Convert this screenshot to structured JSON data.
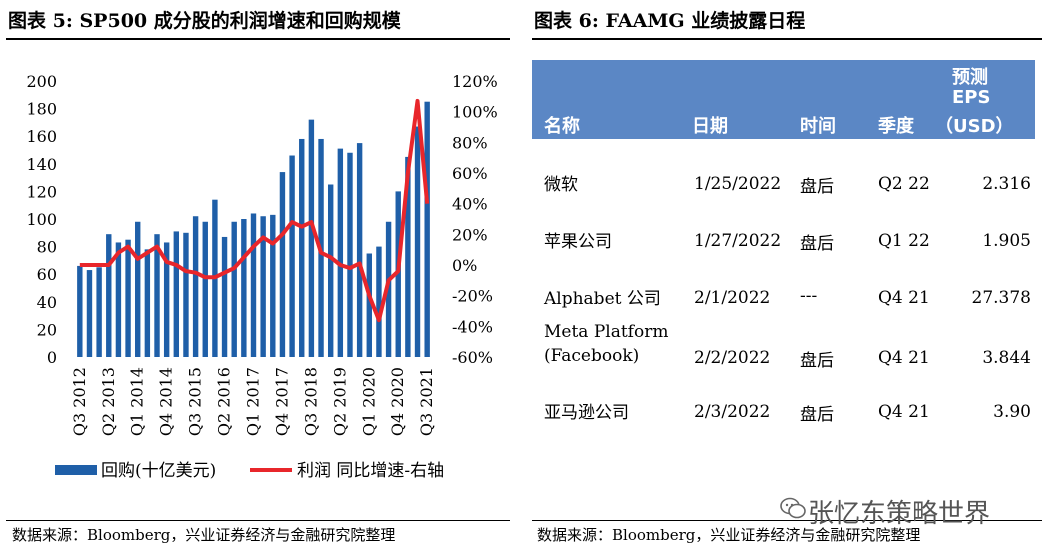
{
  "left_title": "图表 5:  SP500 成分股的利润增速和回购规模",
  "right_title": "图表 6:  FAAMG 业绩披露日程",
  "left_source": "数据来源：Bloomberg，兴业证券经济与金融研究院整理",
  "right_source": "数据来源：Bloomberg，兴业证券经济与金融研究院整理",
  "watermark": "张忆东策略世界",
  "colors": {
    "bar": "#1f5fa8",
    "line": "#e8262b",
    "table_header": "#5b87c5"
  },
  "chart_data": {
    "type": "bar+line",
    "title": "",
    "x": [
      "Q3 2012",
      "Q4 2012",
      "Q1 2013",
      "Q2 2013",
      "Q3 2013",
      "Q4 2013",
      "Q1 2014",
      "Q2 2014",
      "Q3 2014",
      "Q4 2014",
      "Q1 2015",
      "Q2 2015",
      "Q3 2015",
      "Q4 2015",
      "Q1 2016",
      "Q2 2016",
      "Q3 2016",
      "Q4 2016",
      "Q1 2017",
      "Q2 2017",
      "Q3 2017",
      "Q4 2017",
      "Q1 2018",
      "Q2 2018",
      "Q3 2018",
      "Q4 2018",
      "Q1 2019",
      "Q2 2019",
      "Q3 2019",
      "Q4 2019",
      "Q1 2020",
      "Q2 2020",
      "Q3 2020",
      "Q4 2020",
      "Q1 2021",
      "Q2 2021",
      "Q3 2021"
    ],
    "x_tick_labels": [
      "Q3 2012",
      "Q2 2013",
      "Q1 2014",
      "Q4 2014",
      "Q3 2015",
      "Q2 2016",
      "Q1 2017",
      "Q4 2017",
      "Q3 2018",
      "Q2 2019",
      "Q1 2020",
      "Q4 2020",
      "Q3 2021"
    ],
    "series": [
      {
        "name": "回购(十亿美元)",
        "type": "bar",
        "axis": "left",
        "values": [
          66,
          63,
          65,
          89,
          83,
          85,
          98,
          78,
          89,
          83,
          91,
          90,
          102,
          98,
          114,
          87,
          98,
          100,
          104,
          102,
          103,
          134,
          146,
          158,
          172,
          158,
          125,
          151,
          148,
          155,
          75,
          80,
          98,
          120,
          145,
          167,
          185
        ]
      },
      {
        "name": "利润 同比增速-右轴",
        "type": "line",
        "axis": "right",
        "values": [
          0,
          0,
          0,
          0,
          8,
          12,
          4,
          8,
          12,
          2,
          0,
          -4,
          -5,
          -8,
          -8,
          -5,
          -2,
          5,
          12,
          18,
          14,
          20,
          28,
          25,
          28,
          8,
          5,
          0,
          -2,
          1,
          -20,
          -36,
          -10,
          -4,
          60,
          107,
          40
        ]
      }
    ],
    "y_left": {
      "min": 0,
      "max": 200,
      "ticks": [
        0,
        20,
        40,
        60,
        80,
        100,
        120,
        140,
        160,
        180,
        200
      ]
    },
    "y_right": {
      "min": -60,
      "max": 120,
      "ticks": [
        "-60%",
        "-40%",
        "-20%",
        "0%",
        "20%",
        "40%",
        "60%",
        "80%",
        "100%",
        "120%"
      ]
    },
    "legend": {
      "placement": "bottom",
      "items": [
        "回购(十亿美元)",
        "利润 同比增速-右轴"
      ]
    }
  },
  "table": {
    "headers": {
      "name": "名称",
      "date": "日期",
      "time": "时间",
      "quarter": "季度",
      "eps_line1": "预测",
      "eps_line2": "EPS",
      "eps_line3": "（USD）"
    },
    "rows": [
      {
        "name": "微软",
        "name2": "",
        "date": "1/25/2022",
        "time": "盘后",
        "quarter": "Q2 22",
        "eps": "2.316"
      },
      {
        "name": "苹果公司",
        "name2": "",
        "date": "1/27/2022",
        "time": "盘后",
        "quarter": "Q1 22",
        "eps": "1.905"
      },
      {
        "name": "Alphabet 公司",
        "name2": "",
        "date": "2/1/2022",
        "time": "---",
        "quarter": "Q4 21",
        "eps": "27.378"
      },
      {
        "name": "Meta Platform",
        "name2": "(Facebook)",
        "date": "2/2/2022",
        "time": "盘后",
        "quarter": "Q4 21",
        "eps": "3.844"
      },
      {
        "name": "亚马逊公司",
        "name2": "",
        "date": "2/3/2022",
        "time": "盘后",
        "quarter": "Q4 21",
        "eps": "3.90"
      }
    ]
  }
}
